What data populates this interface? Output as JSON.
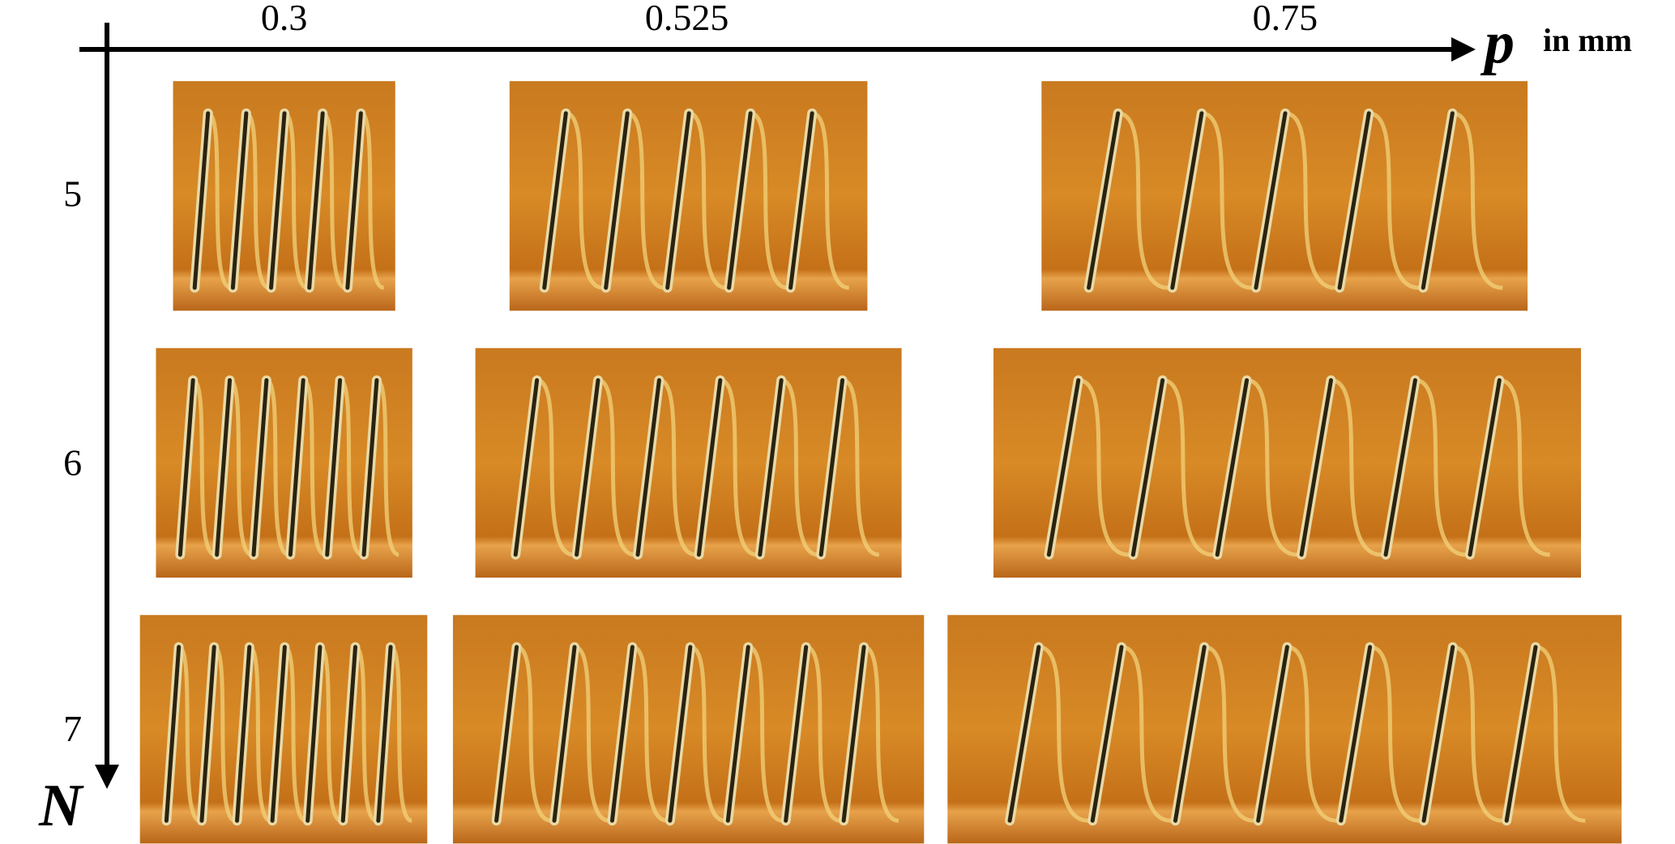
{
  "x_axis": {
    "label": "p",
    "unit": "in mm",
    "values": [
      0.3,
      0.525,
      0.75
    ]
  },
  "y_axis": {
    "label": "N",
    "values": [
      5,
      6,
      7
    ]
  }
}
